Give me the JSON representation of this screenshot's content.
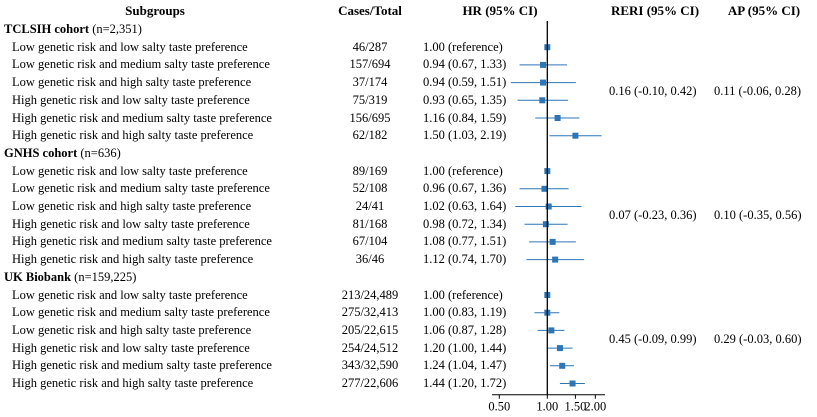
{
  "headers": {
    "subgroups": "Subgroups",
    "cases_total": "Cases/Total",
    "hr": "HR (95% CI)",
    "reri": "RERI (95% CI)",
    "ap": "AP (95% CI)"
  },
  "colors": {
    "marker": "#2e75b6",
    "axis": "#000000"
  },
  "chart_data": {
    "type": "forest",
    "xscale": "log",
    "reference_line": 1.0,
    "xticks": [
      0.5,
      1.0,
      1.5,
      2.0
    ],
    "xtick_labels": [
      "0.50",
      "1.00",
      "1.50",
      "2.00"
    ],
    "xlim": [
      0.45,
      2.3
    ],
    "cohorts": [
      {
        "name": "TCLSIH cohort",
        "n": "(n=2,351)",
        "reri": "0.16 (-0.10, 0.42)",
        "ap": "0.11 (-0.06, 0.28)",
        "rows": [
          {
            "label": "Low genetic risk and low salty taste preference",
            "cases": "46/287",
            "hr_text": "1.00 (reference)",
            "hr": 1.0,
            "lo": 1.0,
            "hi": 1.0
          },
          {
            "label": "Low genetic risk and medium salty taste preference",
            "cases": "157/694",
            "hr_text": "0.94 (0.67, 1.33)",
            "hr": 0.94,
            "lo": 0.67,
            "hi": 1.33
          },
          {
            "label": "Low genetic risk and high salty taste preference",
            "cases": "37/174",
            "hr_text": "0.94 (0.59, 1.51)",
            "hr": 0.94,
            "lo": 0.59,
            "hi": 1.51
          },
          {
            "label": "High genetic risk and low salty taste preference",
            "cases": "75/319",
            "hr_text": "0.93 (0.65, 1.35)",
            "hr": 0.93,
            "lo": 0.65,
            "hi": 1.35
          },
          {
            "label": "High genetic risk and medium salty taste preference",
            "cases": "156/695",
            "hr_text": "1.16 (0.84, 1.59)",
            "hr": 1.16,
            "lo": 0.84,
            "hi": 1.59
          },
          {
            "label": "High genetic risk and high salty taste preference",
            "cases": "62/182",
            "hr_text": "1.50 (1.03, 2.19)",
            "hr": 1.5,
            "lo": 1.03,
            "hi": 2.19
          }
        ]
      },
      {
        "name": "GNHS cohort",
        "n": "(n=636)",
        "reri": "0.07 (-0.23, 0.36)",
        "ap": "0.10 (-0.35, 0.56)",
        "rows": [
          {
            "label": "Low genetic risk and low salty taste preference",
            "cases": "89/169",
            "hr_text": "1.00 (reference)",
            "hr": 1.0,
            "lo": 1.0,
            "hi": 1.0
          },
          {
            "label": "Low genetic risk and medium salty taste preference",
            "cases": "52/108",
            "hr_text": "0.96 (0.67, 1.36)",
            "hr": 0.96,
            "lo": 0.67,
            "hi": 1.36
          },
          {
            "label": "Low genetic risk and high salty taste preference",
            "cases": "24/41",
            "hr_text": "1.02 (0.63, 1.64)",
            "hr": 1.02,
            "lo": 0.63,
            "hi": 1.64
          },
          {
            "label": "High genetic risk and low salty taste preference",
            "cases": "81/168",
            "hr_text": "0.98 (0.72, 1.34)",
            "hr": 0.98,
            "lo": 0.72,
            "hi": 1.34
          },
          {
            "label": "High genetic risk and medium salty taste preference",
            "cases": "67/104",
            "hr_text": "1.08 (0.77, 1.51)",
            "hr": 1.08,
            "lo": 0.77,
            "hi": 1.51
          },
          {
            "label": "High genetic risk and high salty taste preference",
            "cases": "36/46",
            "hr_text": "1.12 (0.74, 1.70)",
            "hr": 1.12,
            "lo": 0.74,
            "hi": 1.7
          }
        ]
      },
      {
        "name": "UK Biobank",
        "n": "(n=159,225)",
        "reri": "0.45 (-0.09, 0.99)",
        "ap": "0.29 (-0.03, 0.60)",
        "rows": [
          {
            "label": "Low genetic risk and low salty taste preference",
            "cases": "213/24,489",
            "hr_text": "1.00 (reference)",
            "hr": 1.0,
            "lo": 1.0,
            "hi": 1.0
          },
          {
            "label": "Low genetic risk and medium salty taste preference",
            "cases": "275/32,413",
            "hr_text": "1.00 (0.83, 1.19)",
            "hr": 1.0,
            "lo": 0.83,
            "hi": 1.19
          },
          {
            "label": "Low genetic risk and high salty taste preference",
            "cases": "205/22,615",
            "hr_text": "1.06 (0.87, 1.28)",
            "hr": 1.06,
            "lo": 0.87,
            "hi": 1.28
          },
          {
            "label": "High genetic risk and low salty taste preference",
            "cases": "254/24,512",
            "hr_text": "1.20 (1.00, 1.44)",
            "hr": 1.2,
            "lo": 1.0,
            "hi": 1.44
          },
          {
            "label": "High genetic risk and medium salty taste preference",
            "cases": "343/32,590",
            "hr_text": "1.24 (1.04, 1.47)",
            "hr": 1.24,
            "lo": 1.04,
            "hi": 1.47
          },
          {
            "label": "High genetic risk and high salty taste preference",
            "cases": "277/22,606",
            "hr_text": "1.44 (1.20, 1.72)",
            "hr": 1.44,
            "lo": 1.2,
            "hi": 1.72
          }
        ]
      }
    ]
  }
}
